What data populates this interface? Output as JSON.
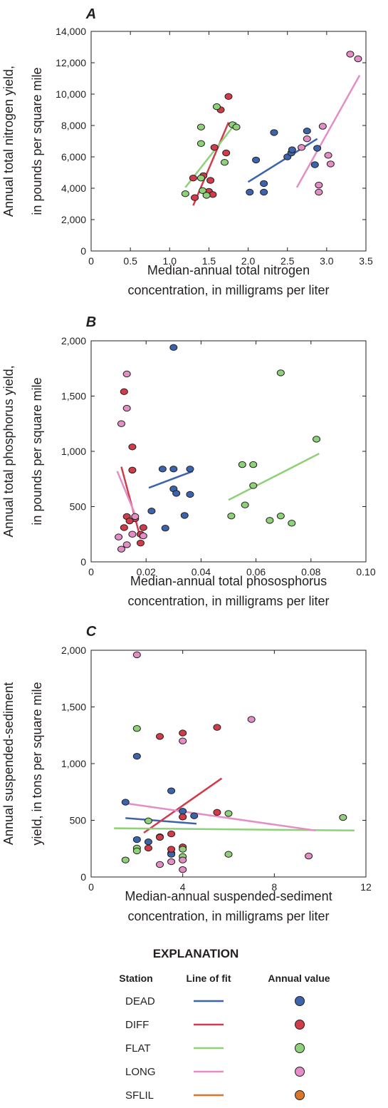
{
  "colors": {
    "DEAD": "#3c64ad",
    "DIFF": "#d13b4a",
    "FLAT": "#8fd07a",
    "LONG": "#e38ec5",
    "SFLIL": "#d8772a",
    "axis": "#231f20"
  },
  "chart_data": [
    {
      "type": "scatter",
      "panel": "A",
      "xlabel": [
        "Median-annual total nitrogen",
        "concentration, in milligrams per liter"
      ],
      "ylabel": [
        "Annual total nitrogen yield,",
        "in pounds per square mile"
      ],
      "xlim": [
        0,
        3.5
      ],
      "ylim": [
        0,
        14000
      ],
      "xticks": [
        0,
        0.5,
        1.0,
        1.5,
        2.0,
        2.5,
        3.0,
        3.5
      ],
      "xtick_labels": [
        "0",
        "0.5",
        "1.0",
        "1.5",
        "2.0",
        "2.5",
        "3.0",
        "3.5"
      ],
      "yticks": [
        0,
        2000,
        4000,
        6000,
        8000,
        10000,
        12000,
        14000
      ],
      "ytick_labels": [
        "0",
        "2,000",
        "4,000",
        "6,000",
        "8,000",
        "10,000",
        "12,000",
        "14,000"
      ],
      "series": [
        {
          "name": "DEAD",
          "points": [
            [
              2.02,
              3750
            ],
            [
              2.1,
              5800
            ],
            [
              2.2,
              3750
            ],
            [
              2.2,
              4300
            ],
            [
              2.33,
              7550
            ],
            [
              2.5,
              6000
            ],
            [
              2.55,
              6250
            ],
            [
              2.56,
              6450
            ],
            [
              2.75,
              7650
            ],
            [
              2.85,
              5500
            ],
            [
              2.88,
              6550
            ]
          ],
          "fit": [
            [
              2.0,
              4400
            ],
            [
              2.88,
              7150
            ]
          ]
        },
        {
          "name": "DIFF",
          "points": [
            [
              1.3,
              4650
            ],
            [
              1.32,
              3400
            ],
            [
              1.43,
              4800
            ],
            [
              1.5,
              3800
            ],
            [
              1.52,
              4500
            ],
            [
              1.55,
              3600
            ],
            [
              1.57,
              6600
            ],
            [
              1.65,
              9000
            ],
            [
              1.72,
              6250
            ],
            [
              1.75,
              9850
            ]
          ],
          "fit": [
            [
              1.3,
              2900
            ],
            [
              1.75,
              8200
            ]
          ]
        },
        {
          "name": "FLAT",
          "points": [
            [
              1.2,
              3650
            ],
            [
              1.4,
              6850
            ],
            [
              1.4,
              7900
            ],
            [
              1.4,
              4650
            ],
            [
              1.42,
              3850
            ],
            [
              1.47,
              3550
            ],
            [
              1.6,
              9200
            ],
            [
              1.7,
              5650
            ],
            [
              1.8,
              8050
            ],
            [
              1.85,
              7900
            ]
          ],
          "fit": [
            [
              1.2,
              4050
            ],
            [
              1.85,
              8200
            ]
          ]
        },
        {
          "name": "LONG",
          "points": [
            [
              2.68,
              6600
            ],
            [
              2.75,
              7150
            ],
            [
              2.9,
              4200
            ],
            [
              2.9,
              3750
            ],
            [
              2.95,
              7950
            ],
            [
              3.02,
              6100
            ],
            [
              3.05,
              5550
            ],
            [
              3.3,
              12550
            ],
            [
              3.4,
              12250
            ]
          ],
          "fit": [
            [
              2.62,
              4050
            ],
            [
              3.42,
              11200
            ]
          ]
        }
      ]
    },
    {
      "type": "scatter",
      "panel": "B",
      "xlabel": [
        "Median-annual total phososphorus",
        "concentration, in milligrams per liter"
      ],
      "ylabel": [
        "Annual total phosphorus yield,",
        "in pounds per square mile"
      ],
      "xlim": [
        0,
        0.1
      ],
      "ylim": [
        0,
        2000
      ],
      "xticks": [
        0,
        0.02,
        0.04,
        0.06,
        0.08,
        0.1
      ],
      "xtick_labels": [
        "0",
        "0.02",
        "0.04",
        "0.06",
        "0.08",
        "0.10"
      ],
      "yticks": [
        0,
        500,
        1000,
        1500,
        2000
      ],
      "ytick_labels": [
        "0",
        "500",
        "1,000",
        "1,500",
        "2,000"
      ],
      "series": [
        {
          "name": "DEAD",
          "points": [
            [
              0.03,
              1940
            ],
            [
              0.026,
              840
            ],
            [
              0.03,
              840
            ],
            [
              0.036,
              840
            ],
            [
              0.03,
              660
            ],
            [
              0.031,
              620
            ],
            [
              0.036,
              610
            ],
            [
              0.022,
              460
            ],
            [
              0.034,
              420
            ],
            [
              0.027,
              305
            ]
          ],
          "fit": [
            [
              0.021,
              670
            ],
            [
              0.037,
              820
            ]
          ]
        },
        {
          "name": "DIFF",
          "points": [
            [
              0.012,
              1540
            ],
            [
              0.015,
              1040
            ],
            [
              0.015,
              830
            ],
            [
              0.013,
              410
            ],
            [
              0.016,
              390
            ],
            [
              0.014,
              370
            ],
            [
              0.012,
              310
            ],
            [
              0.019,
              310
            ],
            [
              0.018,
              250
            ],
            [
              0.018,
              170
            ]
          ],
          "fit": [
            [
              0.011,
              860
            ],
            [
              0.018,
              210
            ]
          ]
        },
        {
          "name": "FLAT",
          "points": [
            [
              0.069,
              1710
            ],
            [
              0.082,
              1110
            ],
            [
              0.055,
              880
            ],
            [
              0.059,
              880
            ],
            [
              0.059,
              690
            ],
            [
              0.056,
              515
            ],
            [
              0.051,
              415
            ],
            [
              0.069,
              415
            ],
            [
              0.065,
              375
            ],
            [
              0.073,
              350
            ]
          ],
          "fit": [
            [
              0.05,
              560
            ],
            [
              0.083,
              980
            ]
          ]
        },
        {
          "name": "LONG",
          "points": [
            [
              0.013,
              1700
            ],
            [
              0.013,
              1390
            ],
            [
              0.011,
              1250
            ],
            [
              0.016,
              410
            ],
            [
              0.015,
              250
            ],
            [
              0.019,
              235
            ],
            [
              0.01,
              225
            ],
            [
              0.013,
              155
            ],
            [
              0.011,
              115
            ]
          ],
          "fit": [
            [
              0.0095,
              820
            ],
            [
              0.017,
              370
            ]
          ]
        }
      ]
    },
    {
      "type": "scatter",
      "panel": "C",
      "xlabel": [
        "Median-annual suspended-sediment",
        "concentration, in milligrams per liter"
      ],
      "ylabel": [
        "Annual suspended-sediment",
        "yield, in tons per square mile"
      ],
      "xlim": [
        0,
        12
      ],
      "ylim": [
        0,
        2000
      ],
      "xticks": [
        0,
        4,
        8,
        12
      ],
      "xtick_labels": [
        "0",
        "4",
        "8",
        "12"
      ],
      "yticks": [
        0,
        500,
        1000,
        1500,
        2000
      ],
      "ytick_labels": [
        "0",
        "500",
        "1,000",
        "1,500",
        "2,000"
      ],
      "series": [
        {
          "name": "DEAD",
          "points": [
            [
              2,
              1065
            ],
            [
              3.5,
              760
            ],
            [
              1.5,
              660
            ],
            [
              4,
              580
            ],
            [
              4.5,
              540
            ],
            [
              4,
              530
            ],
            [
              2,
              330
            ],
            [
              2.5,
              310
            ],
            [
              3,
              355
            ],
            [
              3.5,
              210
            ],
            [
              3.5,
              200
            ]
          ],
          "fit": [
            [
              1.5,
              520
            ],
            [
              4.6,
              470
            ]
          ]
        },
        {
          "name": "DIFF",
          "points": [
            [
              5.5,
              1320
            ],
            [
              3,
              1240
            ],
            [
              4,
              1270
            ],
            [
              5.5,
              570
            ],
            [
              4,
              530
            ],
            [
              3.5,
              380
            ],
            [
              3,
              350
            ],
            [
              2.5,
              255
            ],
            [
              3.5,
              245
            ],
            [
              4,
              265
            ]
          ],
          "fit": [
            [
              2.3,
              390
            ],
            [
              5.7,
              870
            ]
          ]
        },
        {
          "name": "FLAT",
          "points": [
            [
              2,
              1310
            ],
            [
              2.5,
              495
            ],
            [
              6,
              560
            ],
            [
              11,
              525
            ],
            [
              2,
              255
            ],
            [
              4,
              245
            ],
            [
              2,
              230
            ],
            [
              6,
              200
            ],
            [
              4,
              180
            ],
            [
              1.5,
              150
            ]
          ],
          "fit": [
            [
              1.0,
              430
            ],
            [
              11.5,
              410
            ]
          ]
        },
        {
          "name": "LONG",
          "points": [
            [
              2,
              1960
            ],
            [
              4,
              1200
            ],
            [
              7,
              1390
            ],
            [
              9.5,
              185
            ],
            [
              3.5,
              135
            ],
            [
              4,
              150
            ],
            [
              3,
              110
            ],
            [
              4,
              65
            ]
          ],
          "fit": [
            [
              1.5,
              650
            ],
            [
              9.8,
              410
            ]
          ]
        }
      ]
    }
  ],
  "legend": {
    "title": "EXPLANATION",
    "col_station": "Station",
    "col_line": "Line of fit",
    "col_value": "Annual value",
    "stations": [
      "DEAD",
      "DIFF",
      "FLAT",
      "LONG",
      "SFLIL"
    ]
  }
}
